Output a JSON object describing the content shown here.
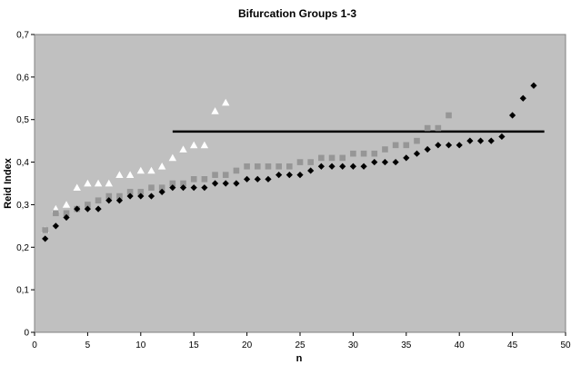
{
  "chart_data": {
    "type": "scatter",
    "title": "Bifurcation Groups 1-3",
    "xlabel": "n",
    "ylabel": "Reid Index",
    "xlim": [
      0,
      50
    ],
    "ylim": [
      0,
      0.7
    ],
    "x_ticks": [
      "0",
      "5",
      "10",
      "15",
      "20",
      "25",
      "30",
      "35",
      "40",
      "45",
      "50"
    ],
    "y_ticks": [
      "0",
      "0,1",
      "0,2",
      "0,3",
      "0,4",
      "0,5",
      "0,6",
      "0,7"
    ],
    "plot_background": "#c0c0c0",
    "grid": false,
    "legend": "none",
    "series": [
      {
        "marker": "triangle",
        "color": "#ffffff",
        "x": [
          1,
          2,
          3,
          4,
          5,
          6,
          7,
          8,
          9,
          10,
          11,
          12,
          13,
          14,
          15,
          16,
          17,
          18
        ],
        "y": [
          0.24,
          0.29,
          0.3,
          0.34,
          0.35,
          0.35,
          0.35,
          0.37,
          0.37,
          0.38,
          0.38,
          0.39,
          0.41,
          0.43,
          0.44,
          0.44,
          0.52,
          0.54
        ]
      },
      {
        "marker": "square",
        "color": "#969696",
        "x": [
          1,
          2,
          3,
          4,
          5,
          6,
          7,
          8,
          9,
          10,
          11,
          12,
          13,
          14,
          15,
          16,
          17,
          18,
          19,
          20,
          21,
          22,
          23,
          24,
          25,
          26,
          27,
          28,
          29,
          30,
          31,
          32,
          33,
          34,
          35,
          36,
          37,
          38,
          39
        ],
        "y": [
          0.24,
          0.28,
          0.28,
          0.29,
          0.3,
          0.31,
          0.32,
          0.32,
          0.33,
          0.33,
          0.34,
          0.34,
          0.35,
          0.35,
          0.36,
          0.36,
          0.37,
          0.37,
          0.38,
          0.39,
          0.39,
          0.39,
          0.39,
          0.39,
          0.4,
          0.4,
          0.41,
          0.41,
          0.41,
          0.42,
          0.42,
          0.42,
          0.43,
          0.44,
          0.44,
          0.45,
          0.48,
          0.48,
          0.51
        ]
      },
      {
        "marker": "diamond",
        "color": "#000000",
        "x": [
          1,
          2,
          3,
          4,
          5,
          6,
          7,
          8,
          9,
          10,
          11,
          12,
          13,
          14,
          15,
          16,
          17,
          18,
          19,
          20,
          21,
          22,
          23,
          24,
          25,
          26,
          27,
          28,
          29,
          30,
          31,
          32,
          33,
          34,
          35,
          36,
          37,
          38,
          39,
          40,
          41,
          42,
          43,
          44,
          45,
          46,
          47
        ],
        "y": [
          0.22,
          0.25,
          0.27,
          0.29,
          0.29,
          0.29,
          0.31,
          0.31,
          0.32,
          0.32,
          0.32,
          0.33,
          0.34,
          0.34,
          0.34,
          0.34,
          0.35,
          0.35,
          0.35,
          0.36,
          0.36,
          0.36,
          0.37,
          0.37,
          0.37,
          0.38,
          0.39,
          0.39,
          0.39,
          0.39,
          0.39,
          0.4,
          0.4,
          0.4,
          0.41,
          0.42,
          0.43,
          0.44,
          0.44,
          0.44,
          0.45,
          0.45,
          0.45,
          0.46,
          0.51,
          0.55,
          0.58
        ]
      }
    ],
    "reference_line": {
      "color": "#000000",
      "x": [
        13,
        48
      ],
      "y": 0.472
    }
  }
}
